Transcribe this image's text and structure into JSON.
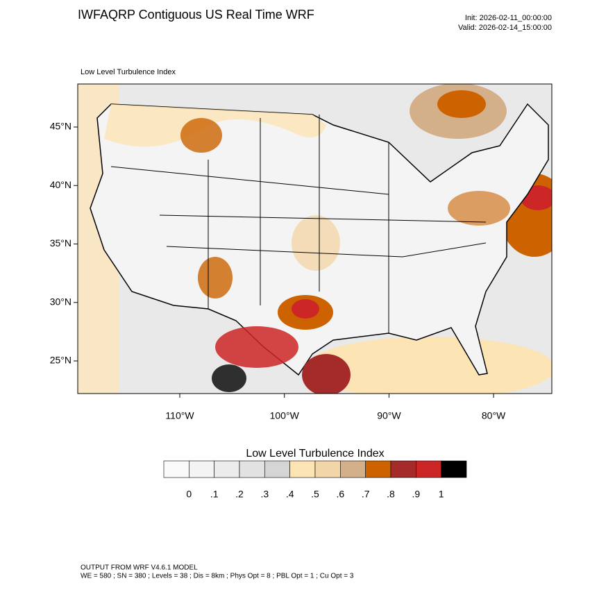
{
  "header": {
    "title": "IWFAQRP Contiguous US Real Time WRF",
    "init": "Init: 2026-02-11_00:00:00",
    "valid": "Valid: 2026-02-14_15:00:00"
  },
  "map": {
    "title": "Low Level Turbulence Index",
    "lat_labels": [
      "45°N",
      "40°N",
      "35°N",
      "30°N",
      "25°N"
    ],
    "lon_labels": [
      "110°W",
      "100°W",
      "90°W",
      "80°W"
    ]
  },
  "colorbar": {
    "title": "Low Level Turbulence Index",
    "colors": [
      "#fafafa",
      "#f4f4f4",
      "#ececec",
      "#e2e2e2",
      "#d5d5d5",
      "#fde4b4",
      "#f2d6a8",
      "#d3b08a",
      "#cc6300",
      "#a52a2a",
      "#cd2626",
      "#000000"
    ],
    "labels": [
      "0",
      ".1",
      ".2",
      ".3",
      ".4",
      ".5",
      ".6",
      ".7",
      ".8",
      ".9",
      "1"
    ]
  },
  "footer": {
    "line1": "OUTPUT FROM WRF V4.6.1 MODEL",
    "line2": "WE = 580 ; SN = 380 ; Levels = 38 ; Dis = 8km ; Phys Opt = 8 ; PBL Opt = 1 ; Cu Opt = 3"
  }
}
